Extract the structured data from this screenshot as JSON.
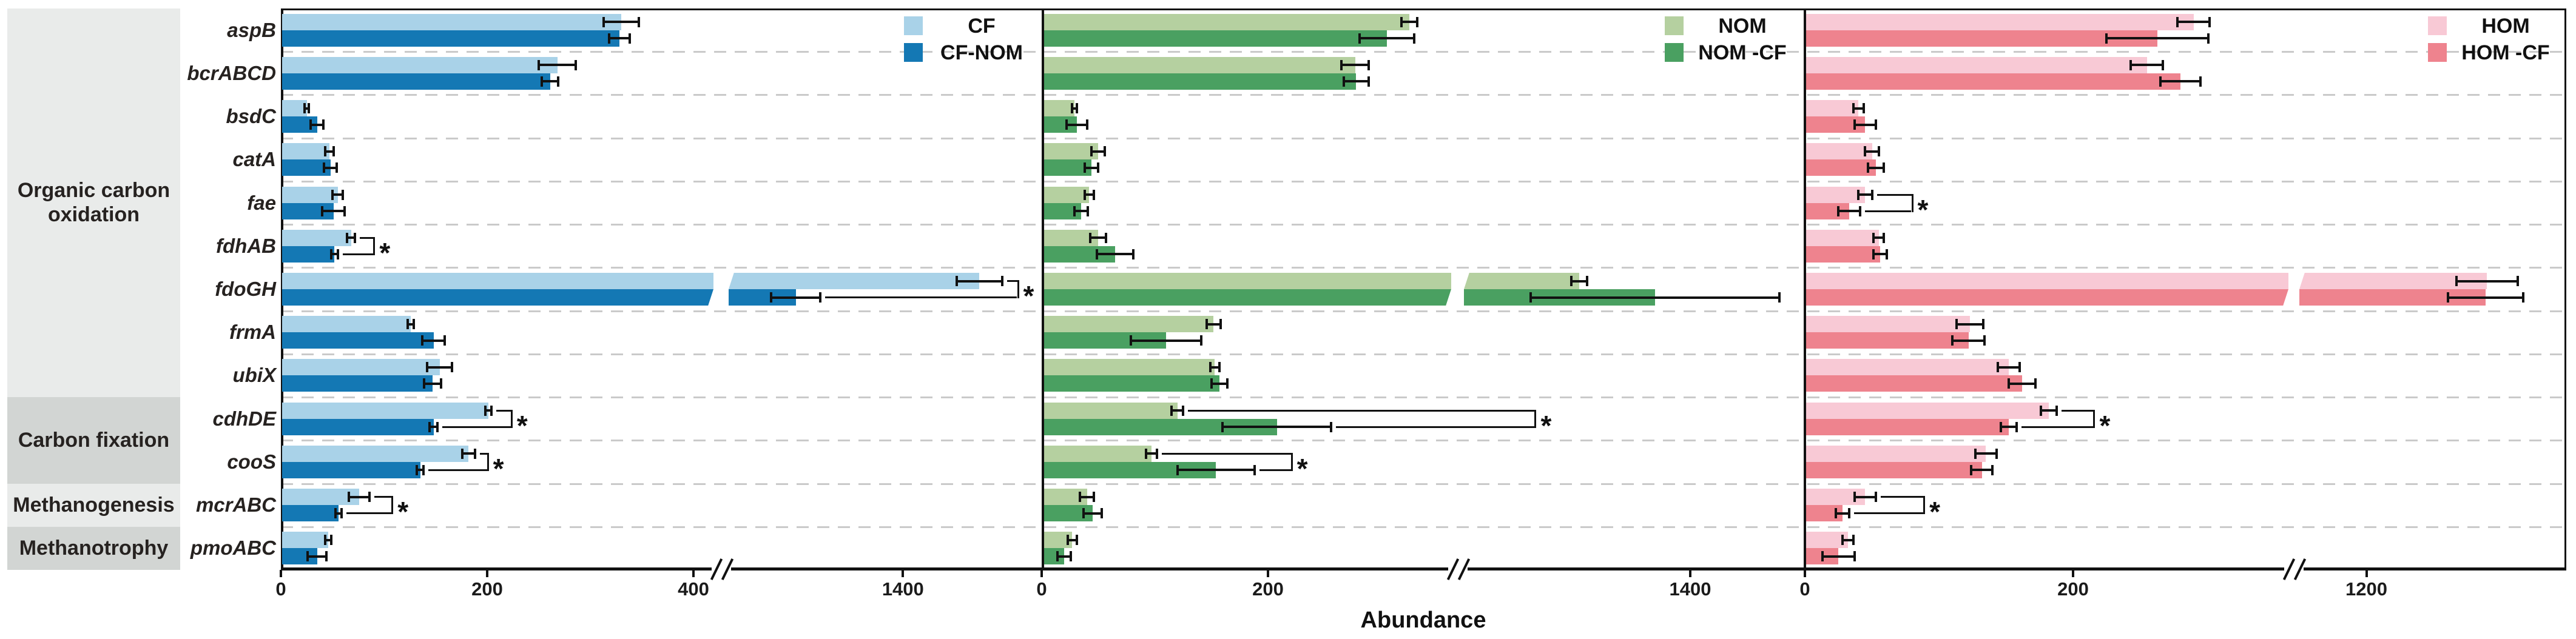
{
  "chart_data": {
    "type": "bar",
    "orientation": "horizontal",
    "axis_title": "Abundance",
    "sig_symbol": "*",
    "genes": [
      "aspB",
      "bcrABCD",
      "bsdC",
      "catA",
      "fae",
      "fdhAB",
      "fdoGH",
      "frmA",
      "ubiX",
      "cdhDE",
      "cooS",
      "mcrABC",
      "pmoABC"
    ],
    "categories": [
      {
        "label": "Organic carbon oxidation",
        "row_start": 0,
        "row_end": 9,
        "shade": "light"
      },
      {
        "label": "Carbon fixation",
        "row_start": 9,
        "row_end": 11,
        "shade": "dark"
      },
      {
        "label": "Methanogenesis",
        "row_start": 11,
        "row_end": 12,
        "shade": "light"
      },
      {
        "label": "Methanotrophy",
        "row_start": 12,
        "row_end": 13,
        "shade": "dark"
      }
    ],
    "category_colors": {
      "light": "#e9ebea",
      "dark": "#d2d5d3"
    },
    "panels": [
      {
        "id": "panel-cf",
        "legend": [
          {
            "label": "CF",
            "color": "#a9d2e8"
          },
          {
            "label": "CF-NOM",
            "color": "#1478b4"
          }
        ],
        "ticks": [
          {
            "label": "0",
            "value": 0
          },
          {
            "label": "200",
            "value": 200
          },
          {
            "label": "400",
            "value": 400
          },
          {
            "label": "1400",
            "value": 1400
          }
        ],
        "axis_break": {
          "break_after_value": 419,
          "resume_value": 1231
        },
        "series": [
          {
            "name": "CF",
            "color": "#a9d2e8",
            "values": [
              [
                330,
                17
              ],
              [
                268,
                18
              ],
              [
                25,
                2
              ],
              [
                47,
                4
              ],
              [
                55,
                5
              ],
              [
                68,
                4
              ],
              [
                1474,
                22
              ],
              [
                126,
                3
              ],
              [
                154,
                12
              ],
              [
                201,
                3
              ],
              [
                182,
                6
              ],
              [
                76,
                10
              ],
              [
                46,
                3
              ]
            ]
          },
          {
            "name": "CF-NOM",
            "color": "#1478b4",
            "values": [
              [
                328,
                10
              ],
              [
                261,
                8
              ],
              [
                35,
                6
              ],
              [
                48,
                6
              ],
              [
                51,
                11
              ],
              [
                52,
                3
              ],
              [
                1296,
                24
              ],
              [
                148,
                11
              ],
              [
                147,
                8
              ],
              [
                148,
                4
              ],
              [
                135,
                3
              ],
              [
                56,
                3
              ],
              [
                35,
                9
              ]
            ]
          }
        ],
        "significant": [
          {
            "gene": "fdhAB",
            "pad": 30
          },
          {
            "gene": "fdoGH",
            "pad": 25
          },
          {
            "gene": "cdhDE",
            "pad": 32
          },
          {
            "gene": "cooS",
            "pad": 20
          },
          {
            "gene": "mcrABC",
            "pad": 36
          }
        ]
      },
      {
        "id": "panel-nom",
        "legend": [
          {
            "label": "NOM",
            "color": "#b5d0a0"
          },
          {
            "label": "NOM -CF",
            "color": "#4aa061"
          }
        ],
        "ticks": [
          {
            "label": "0",
            "value": 0
          },
          {
            "label": "200",
            "value": 200
          },
          {
            "label": "1400",
            "value": 1400
          }
        ],
        "axis_break": {
          "break_after_value": 362,
          "resume_value": 1200
        },
        "series": [
          {
            "name": "NOM",
            "color": "#b5d0a0",
            "values": [
              [
                325,
                7
              ],
              [
                277,
                12
              ],
              [
                29,
                2
              ],
              [
                50,
                6
              ],
              [
                42,
                4
              ],
              [
                50,
                7
              ],
              [
                1302,
                7
              ],
              [
                152,
                6
              ],
              [
                153,
                4
              ],
              [
                120,
                5
              ],
              [
                97,
                5
              ],
              [
                40,
                6
              ],
              [
                27,
                4
              ]
            ]
          },
          {
            "name": "NOM -CF",
            "color": "#4aa061",
            "values": [
              [
                305,
                24
              ],
              [
                278,
                11
              ],
              [
                31,
                9
              ],
              [
                44,
                6
              ],
              [
                35,
                6
              ],
              [
                65,
                16
              ],
              [
                1369,
                110
              ],
              [
                110,
                31
              ],
              [
                157,
                7
              ],
              [
                208,
                48
              ],
              [
                154,
                34
              ],
              [
                45,
                8
              ],
              [
                20,
                6
              ]
            ]
          }
        ],
        "significant": [
          {
            "gene": "cdhDE",
            "pad": 335
          },
          {
            "gene": "cooS",
            "pad": 60
          }
        ]
      },
      {
        "id": "panel-hom",
        "legend": [
          {
            "label": "HOM",
            "color": "#f8c9d5"
          },
          {
            "label": "HOM -CF",
            "color": "#ee838e"
          }
        ],
        "ticks": [
          {
            "label": "0",
            "value": 0
          },
          {
            "label": "200",
            "value": 200
          },
          {
            "label": "1200",
            "value": 1200
          }
        ],
        "axis_break": {
          "break_after_value": 361,
          "resume_value": 1150
        },
        "series": [
          {
            "name": "HOM",
            "color": "#f8c9d5",
            "values": [
              [
                290,
                12
              ],
              [
                255,
                12
              ],
              [
                40,
                4
              ],
              [
                50,
                5
              ],
              [
                45,
                5
              ],
              [
                55,
                4
              ],
              [
                1290,
                23
              ],
              [
                123,
                10
              ],
              [
                152,
                8
              ],
              [
                182,
                6
              ],
              [
                135,
                8
              ],
              [
                45,
                8
              ],
              [
                32,
                4
              ]
            ]
          },
          {
            "name": "HOM -CF",
            "color": "#ee838e",
            "values": [
              [
                263,
                38
              ],
              [
                280,
                15
              ],
              [
                45,
                8
              ],
              [
                53,
                6
              ],
              [
                33,
                8
              ],
              [
                56,
                5
              ],
              [
                1289,
                28
              ],
              [
                122,
                12
              ],
              [
                162,
                10
              ],
              [
                152,
                6
              ],
              [
                132,
                8
              ],
              [
                28,
                5
              ],
              [
                25,
                12
              ]
            ]
          }
        ],
        "significant": [
          {
            "gene": "fae",
            "pad": 65
          },
          {
            "gene": "cdhDE",
            "pad": 60
          },
          {
            "gene": "mcrABC",
            "pad": 78
          }
        ]
      }
    ]
  }
}
